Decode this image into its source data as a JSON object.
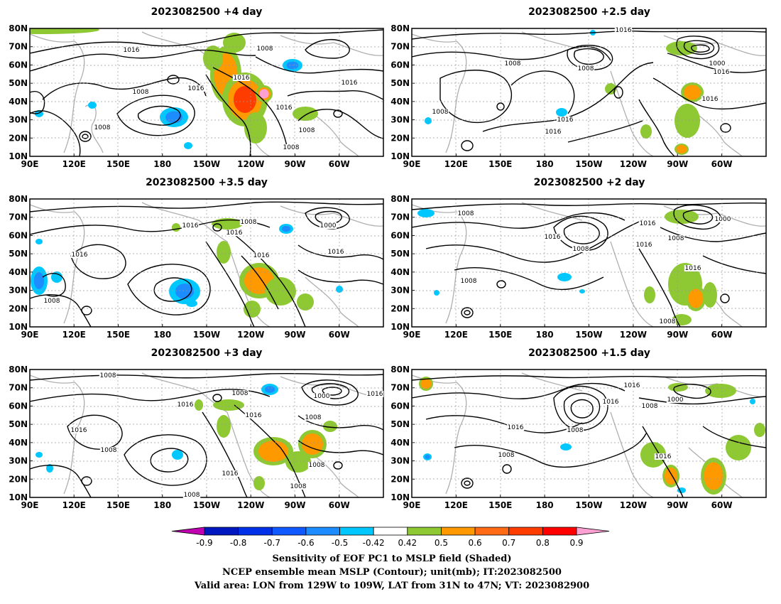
{
  "colors": {
    "contour": "#000000",
    "coastline": "#b0b0b0",
    "grid": "#999999",
    "scale": [
      "#c000b0",
      "#0018c0",
      "#0030e8",
      "#1058ff",
      "#1c8cff",
      "#00c8ff",
      "#ffffff",
      "#8ec832",
      "#ff9900",
      "#ff6a14",
      "#ff3c00",
      "#ff0000",
      "#ffa0d2"
    ]
  },
  "axes": {
    "lat_ticks": [
      "80N",
      "70N",
      "60N",
      "50N",
      "40N",
      "30N",
      "20N",
      "10N"
    ],
    "lon_ticks": [
      "90E",
      "120E",
      "150E",
      "180",
      "150W",
      "120W",
      "90W",
      "60W"
    ]
  },
  "panels": [
    {
      "id": "p4",
      "title": "2023082500  +4 day",
      "contour_labels": [
        [
          "1016",
          185,
          73
        ],
        [
          "1008",
          373,
          71
        ],
        [
          "1008",
          198,
          132
        ],
        [
          "1016",
          276,
          127
        ],
        [
          "1016",
          340,
          112
        ],
        [
          "1016",
          400,
          154
        ],
        [
          "1016",
          492,
          119
        ],
        [
          "1008",
          432,
          186
        ],
        [
          "1008",
          144,
          182
        ],
        [
          "1008",
          410,
          210
        ]
      ],
      "positive_blobs": [
        [
          60,
          42,
          80,
          6,
          1
        ],
        [
          330,
          60,
          16,
          14,
          1
        ],
        [
          318,
          105,
          22,
          40,
          2
        ],
        [
          345,
          140,
          32,
          38,
          3
        ],
        [
          372,
          132,
          12,
          12,
          4
        ],
        [
          360,
          180,
          16,
          22,
          1
        ],
        [
          430,
          160,
          18,
          10,
          1
        ],
        [
          300,
          82,
          14,
          18,
          1
        ]
      ],
      "negative_blobs": [
        [
          245,
          165,
          20,
          14,
          2
        ],
        [
          412,
          92,
          14,
          9,
          2
        ],
        [
          265,
          205,
          6,
          5,
          1
        ],
        [
          55,
          160,
          6,
          5,
          1
        ],
        [
          130,
          148,
          6,
          5,
          1
        ]
      ]
    },
    {
      "id": "p25",
      "title": "2023082500  +2.5 day",
      "contour_labels": [
        [
          "1016",
          878,
          45
        ],
        [
          "1008",
          722,
          92
        ],
        [
          "1008",
          825,
          99
        ],
        [
          "1000",
          1010,
          92
        ],
        [
          "1016",
          1016,
          104
        ],
        [
          "1016",
          1000,
          142
        ],
        [
          "1016",
          796,
          171
        ],
        [
          "1016",
          779,
          188
        ],
        [
          "1008",
          620,
          160
        ]
      ],
      "positive_blobs": [
        [
          960,
          68,
          22,
          10,
          1
        ],
        [
          975,
          130,
          16,
          14,
          2
        ],
        [
          968,
          170,
          18,
          24,
          1
        ],
        [
          910,
          185,
          8,
          10,
          1
        ],
        [
          860,
          125,
          8,
          8,
          1
        ],
        [
          960,
          210,
          10,
          8,
          2
        ]
      ],
      "negative_blobs": [
        [
          791,
          158,
          8,
          6,
          1
        ],
        [
          835,
          46,
          4,
          4,
          1
        ],
        [
          603,
          170,
          5,
          5,
          1
        ]
      ]
    },
    {
      "id": "p35",
      "title": "2023082500  +3.5 day",
      "contour_labels": [
        [
          "1016",
          268,
          320
        ],
        [
          "1008",
          350,
          315
        ],
        [
          "1016",
          330,
          330
        ],
        [
          "1000",
          462,
          320
        ],
        [
          "1016",
          112,
          361
        ],
        [
          "1016",
          368,
          362
        ],
        [
          "1016",
          473,
          357
        ],
        [
          "1008",
          73,
          426
        ]
      ],
      "positive_blobs": [
        [
          320,
          315,
          22,
          8,
          1
        ],
        [
          315,
          355,
          10,
          16,
          1
        ],
        [
          365,
          395,
          28,
          25,
          2
        ],
        [
          395,
          410,
          22,
          20,
          1
        ],
        [
          355,
          435,
          12,
          12,
          1
        ],
        [
          430,
          425,
          12,
          12,
          1
        ],
        [
          248,
          320,
          6,
          6,
          1
        ]
      ],
      "negative_blobs": [
        [
          260,
          410,
          22,
          18,
          2
        ],
        [
          403,
          322,
          10,
          7,
          2
        ],
        [
          55,
          395,
          12,
          20,
          2
        ],
        [
          80,
          390,
          8,
          8,
          1
        ],
        [
          270,
          427,
          8,
          5,
          1
        ],
        [
          478,
          407,
          5,
          5,
          1
        ],
        [
          55,
          340,
          5,
          4,
          1
        ]
      ]
    },
    {
      "id": "p2",
      "title": "2023082500  +2 day",
      "contour_labels": [
        [
          "1008",
          656,
          303
        ],
        [
          "1016",
          912,
          317
        ],
        [
          "1000",
          1018,
          311
        ],
        [
          "1016",
          778,
          336
        ],
        [
          "1008",
          818,
          353
        ],
        [
          "1016",
          907,
          347
        ],
        [
          "1008",
          952,
          338
        ],
        [
          "1016",
          976,
          380
        ],
        [
          "1008",
          660,
          398
        ],
        [
          "1008",
          940,
          455
        ]
      ],
      "positive_blobs": [
        [
          960,
          305,
          24,
          10,
          1
        ],
        [
          965,
          400,
          24,
          30,
          1
        ],
        [
          980,
          420,
          14,
          18,
          2
        ],
        [
          915,
          415,
          8,
          12,
          1
        ],
        [
          1000,
          415,
          10,
          18,
          1
        ],
        [
          960,
          450,
          14,
          8,
          1
        ]
      ],
      "negative_blobs": [
        [
          600,
          300,
          12,
          6,
          1
        ],
        [
          795,
          390,
          10,
          6,
          1
        ],
        [
          820,
          410,
          4,
          3,
          1
        ],
        [
          615,
          412,
          4,
          4,
          1
        ]
      ]
    },
    {
      "id": "p3",
      "title": "2023082500  +3 day",
      "contour_labels": [
        [
          "1008",
          152,
          531
        ],
        [
          "1008",
          338,
          556
        ],
        [
          "1000",
          453,
          560
        ],
        [
          "1016",
          528,
          557
        ],
        [
          "1016",
          261,
          572
        ],
        [
          "1016",
          357,
          587
        ],
        [
          "1008",
          441,
          590
        ],
        [
          "1016",
          111,
          608
        ],
        [
          "1008",
          153,
          636
        ],
        [
          "1016",
          324,
          669
        ],
        [
          "1008",
          446,
          657
        ],
        [
          "1008",
          420,
          687
        ],
        [
          "1008",
          270,
          699
        ]
      ],
      "positive_blobs": [
        [
          322,
          570,
          22,
          8,
          1
        ],
        [
          315,
          600,
          10,
          16,
          1
        ],
        [
          385,
          635,
          28,
          20,
          2
        ],
        [
          440,
          625,
          20,
          20,
          2
        ],
        [
          420,
          650,
          18,
          15,
          1
        ],
        [
          365,
          680,
          8,
          10,
          1
        ],
        [
          465,
          600,
          10,
          8,
          1
        ],
        [
          280,
          570,
          6,
          8,
          1
        ]
      ],
      "negative_blobs": [
        [
          380,
          548,
          12,
          8,
          2
        ],
        [
          250,
          640,
          8,
          7,
          1
        ],
        [
          70,
          659,
          5,
          6,
          1
        ],
        [
          55,
          640,
          5,
          4,
          1
        ]
      ]
    },
    {
      "id": "p15",
      "title": "2023082500  +1.5 day",
      "contour_labels": [
        [
          "1016",
          890,
          545
        ],
        [
          "1016",
          860,
          568
        ],
        [
          "1008",
          915,
          574
        ],
        [
          "1000",
          951,
          565
        ],
        [
          "1016",
          726,
          604
        ],
        [
          "1008",
          810,
          608
        ],
        [
          "1008",
          713,
          643
        ],
        [
          "1016",
          934,
          645
        ]
      ],
      "positive_blobs": [
        [
          1015,
          550,
          22,
          10,
          1
        ],
        [
          955,
          545,
          14,
          6,
          1
        ],
        [
          920,
          640,
          18,
          18,
          1
        ],
        [
          945,
          670,
          12,
          16,
          2
        ],
        [
          1005,
          670,
          18,
          26,
          2
        ],
        [
          1040,
          630,
          18,
          18,
          1
        ],
        [
          1070,
          605,
          8,
          10,
          1
        ],
        [
          600,
          540,
          10,
          10,
          2
        ]
      ],
      "negative_blobs": [
        [
          797,
          629,
          8,
          5,
          1
        ],
        [
          602,
          643,
          6,
          5,
          2
        ],
        [
          960,
          690,
          6,
          4,
          1
        ],
        [
          1060,
          565,
          4,
          4,
          1
        ]
      ]
    }
  ],
  "colorbar": {
    "labels": [
      "-0.9",
      "-0.8",
      "-0.7",
      "-0.6",
      "-0.5",
      "-0.42",
      "0.42",
      "0.5",
      "0.6",
      "0.7",
      "0.8",
      "0.9"
    ]
  },
  "footer": {
    "line1": "Sensitivity of EOF PC1 to MSLP field (Shaded)",
    "line2": "NCEP ensemble mean MSLP (Contour); unit(mb); IT:2023082500",
    "line3": "Valid area: LON from 129W to 109W, LAT from 31N to 47N; VT: 2023082900"
  }
}
